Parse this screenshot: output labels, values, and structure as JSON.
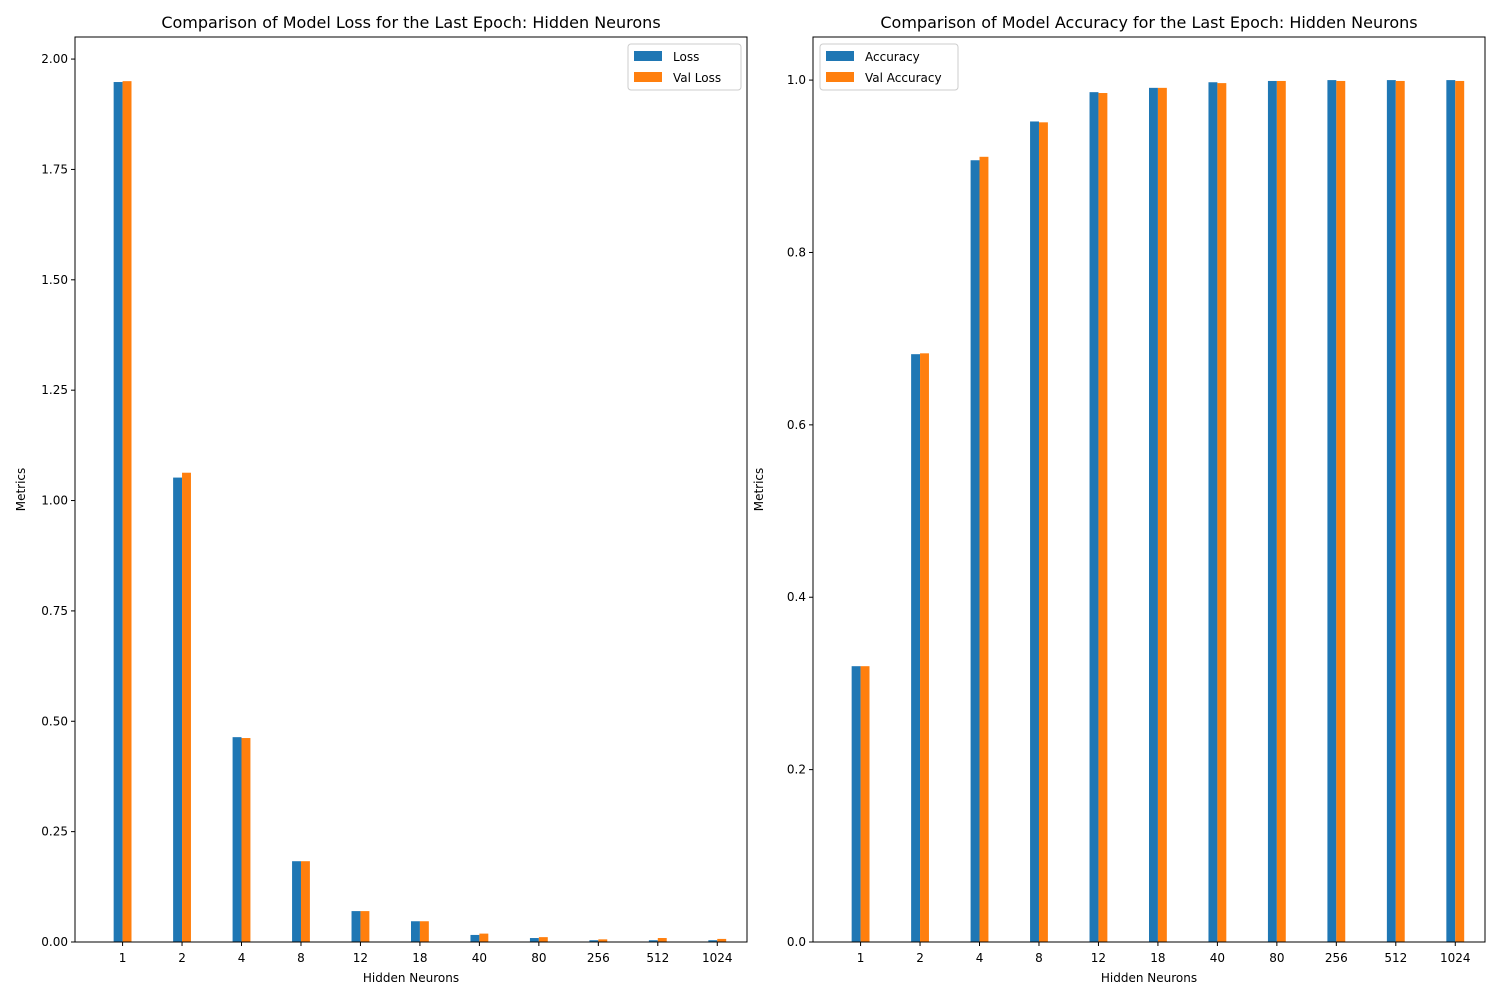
{
  "chart_data": [
    {
      "type": "bar",
      "title": "Comparison of Model Loss for the Last Epoch: Hidden Neurons",
      "xlabel": "Hidden Neurons",
      "ylabel": "Metrics",
      "categories": [
        "1",
        "2",
        "4",
        "8",
        "12",
        "18",
        "40",
        "80",
        "256",
        "512",
        "1024"
      ],
      "series": [
        {
          "name": "Loss",
          "color": "#1f77b4",
          "values": [
            1.948,
            1.052,
            0.464,
            0.183,
            0.07,
            0.047,
            0.016,
            0.009,
            0.004,
            0.004,
            0.004
          ]
        },
        {
          "name": "Val Loss",
          "color": "#ff7f0e",
          "values": [
            1.95,
            1.063,
            0.462,
            0.183,
            0.07,
            0.047,
            0.019,
            0.011,
            0.006,
            0.009,
            0.007
          ]
        }
      ],
      "ylim": [
        0,
        2.05
      ],
      "yticks": [
        0.0,
        0.25,
        0.5,
        0.75,
        1.0,
        1.25,
        1.5,
        1.75,
        2.0
      ],
      "ytick_labels": [
        "0.00",
        "0.25",
        "0.50",
        "0.75",
        "1.00",
        "1.25",
        "1.50",
        "1.75",
        "2.00"
      ],
      "grid": false,
      "legend_position": "top-right"
    },
    {
      "type": "bar",
      "title": "Comparison of Model Accuracy for the Last Epoch: Hidden Neurons",
      "xlabel": "Hidden Neurons",
      "ylabel": "Metrics",
      "categories": [
        "1",
        "2",
        "4",
        "8",
        "12",
        "18",
        "40",
        "80",
        "256",
        "512",
        "1024"
      ],
      "series": [
        {
          "name": "Accuracy",
          "color": "#1f77b4",
          "values": [
            0.32,
            0.682,
            0.907,
            0.952,
            0.986,
            0.991,
            0.9975,
            0.999,
            1.0,
            1.0,
            1.0
          ]
        },
        {
          "name": "Val Accuracy",
          "color": "#ff7f0e",
          "values": [
            0.32,
            0.683,
            0.911,
            0.951,
            0.985,
            0.991,
            0.9965,
            0.999,
            0.999,
            0.999,
            0.999
          ]
        }
      ],
      "ylim": [
        0,
        1.05
      ],
      "yticks": [
        0.0,
        0.2,
        0.4,
        0.6,
        0.8,
        1.0
      ],
      "ytick_labels": [
        "0.0",
        "0.2",
        "0.4",
        "0.6",
        "0.8",
        "1.0"
      ],
      "grid": false,
      "legend_position": "top-left"
    }
  ]
}
